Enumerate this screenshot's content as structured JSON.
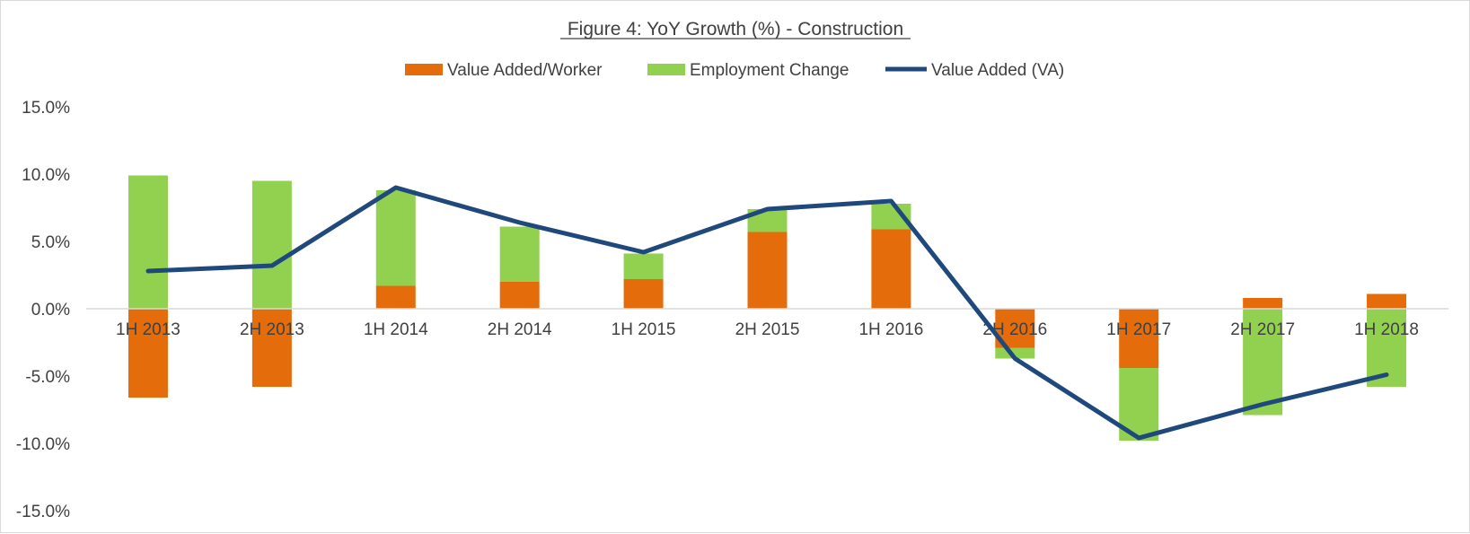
{
  "chart_data": {
    "type": "bar",
    "title": "Figure 4: YoY Growth (%) - Construction",
    "categories": [
      "1H 2013",
      "2H 2013",
      "1H 2014",
      "2H 2014",
      "1H 2015",
      "2H 2015",
      "1H 2016",
      "2H 2016",
      "1H 2017",
      "2H 2017",
      "1H 2018"
    ],
    "stacked": true,
    "series": [
      {
        "name": "Value Added/Worker",
        "kind": "bar",
        "color": "#e46c0a",
        "values": [
          -6.6,
          -5.8,
          1.7,
          2.0,
          2.2,
          5.7,
          5.9,
          -2.9,
          -4.4,
          0.8,
          1.1
        ]
      },
      {
        "name": "Employment Change",
        "kind": "bar",
        "color": "#92d050",
        "values": [
          9.9,
          9.5,
          7.1,
          4.1,
          1.9,
          1.7,
          1.9,
          -0.8,
          -5.4,
          -7.9,
          -5.8
        ]
      },
      {
        "name": "Value Added (VA)",
        "kind": "line",
        "color": "#1f497d",
        "values": [
          2.8,
          3.2,
          9.0,
          6.4,
          4.2,
          7.4,
          8.0,
          -3.7,
          -9.6,
          -7.1,
          -4.9
        ]
      }
    ],
    "y_ticks": [
      "15.0%",
      "10.0%",
      "5.0%",
      "0.0%",
      "-5.0%",
      "-10.0%",
      "-15.0%"
    ],
    "ylim": [
      -15,
      15
    ],
    "y_unit": "%",
    "grid": false,
    "legend_position": "top"
  }
}
